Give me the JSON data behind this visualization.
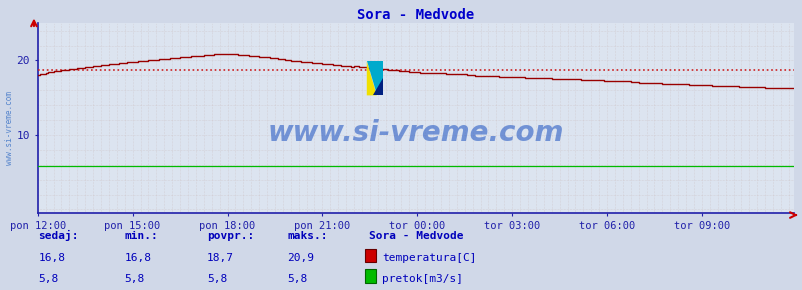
{
  "title": "Sora - Medvode",
  "bg_color": "#d0d8e8",
  "plot_bg_color": "#dce4f0",
  "grid_v_color": "#c8b8b8",
  "grid_h_color": "#c8b8b8",
  "axis_color": "#2020aa",
  "x_tick_labels": [
    "pon 12:00",
    "pon 15:00",
    "pon 18:00",
    "pon 21:00",
    "tor 00:00",
    "tor 03:00",
    "tor 06:00",
    "tor 09:00"
  ],
  "x_tick_positions": [
    0,
    36,
    72,
    108,
    144,
    180,
    216,
    252
  ],
  "total_points": 288,
  "y_ticks": [
    10,
    20
  ],
  "ylim": [
    -0.5,
    25
  ],
  "xlim": [
    0,
    287
  ],
  "temp_color": "#990000",
  "pretok_color": "#00bb00",
  "avg_line_color": "#cc2222",
  "avg_value": 18.7,
  "watermark_text": "www.si-vreme.com",
  "watermark_color": "#1a50c0",
  "watermark_alpha": 0.55,
  "footer_color": "#0000bb",
  "sedaj_label": "sedaj:",
  "min_label": "min.:",
  "povpr_label": "povpr.:",
  "maks_label": "maks.:",
  "station_label": "Sora - Medvode",
  "temp_sedaj": "16,8",
  "temp_min": "16,8",
  "temp_povpr": "18,7",
  "temp_maks": "20,9",
  "pretok_sedaj": "5,8",
  "pretok_min": "5,8",
  "pretok_povpr": "5,8",
  "pretok_maks": "5,8",
  "legend_temp": "temperatura[C]",
  "legend_pretok": "pretok[m3/s]",
  "left_text_color": "#2060c0"
}
